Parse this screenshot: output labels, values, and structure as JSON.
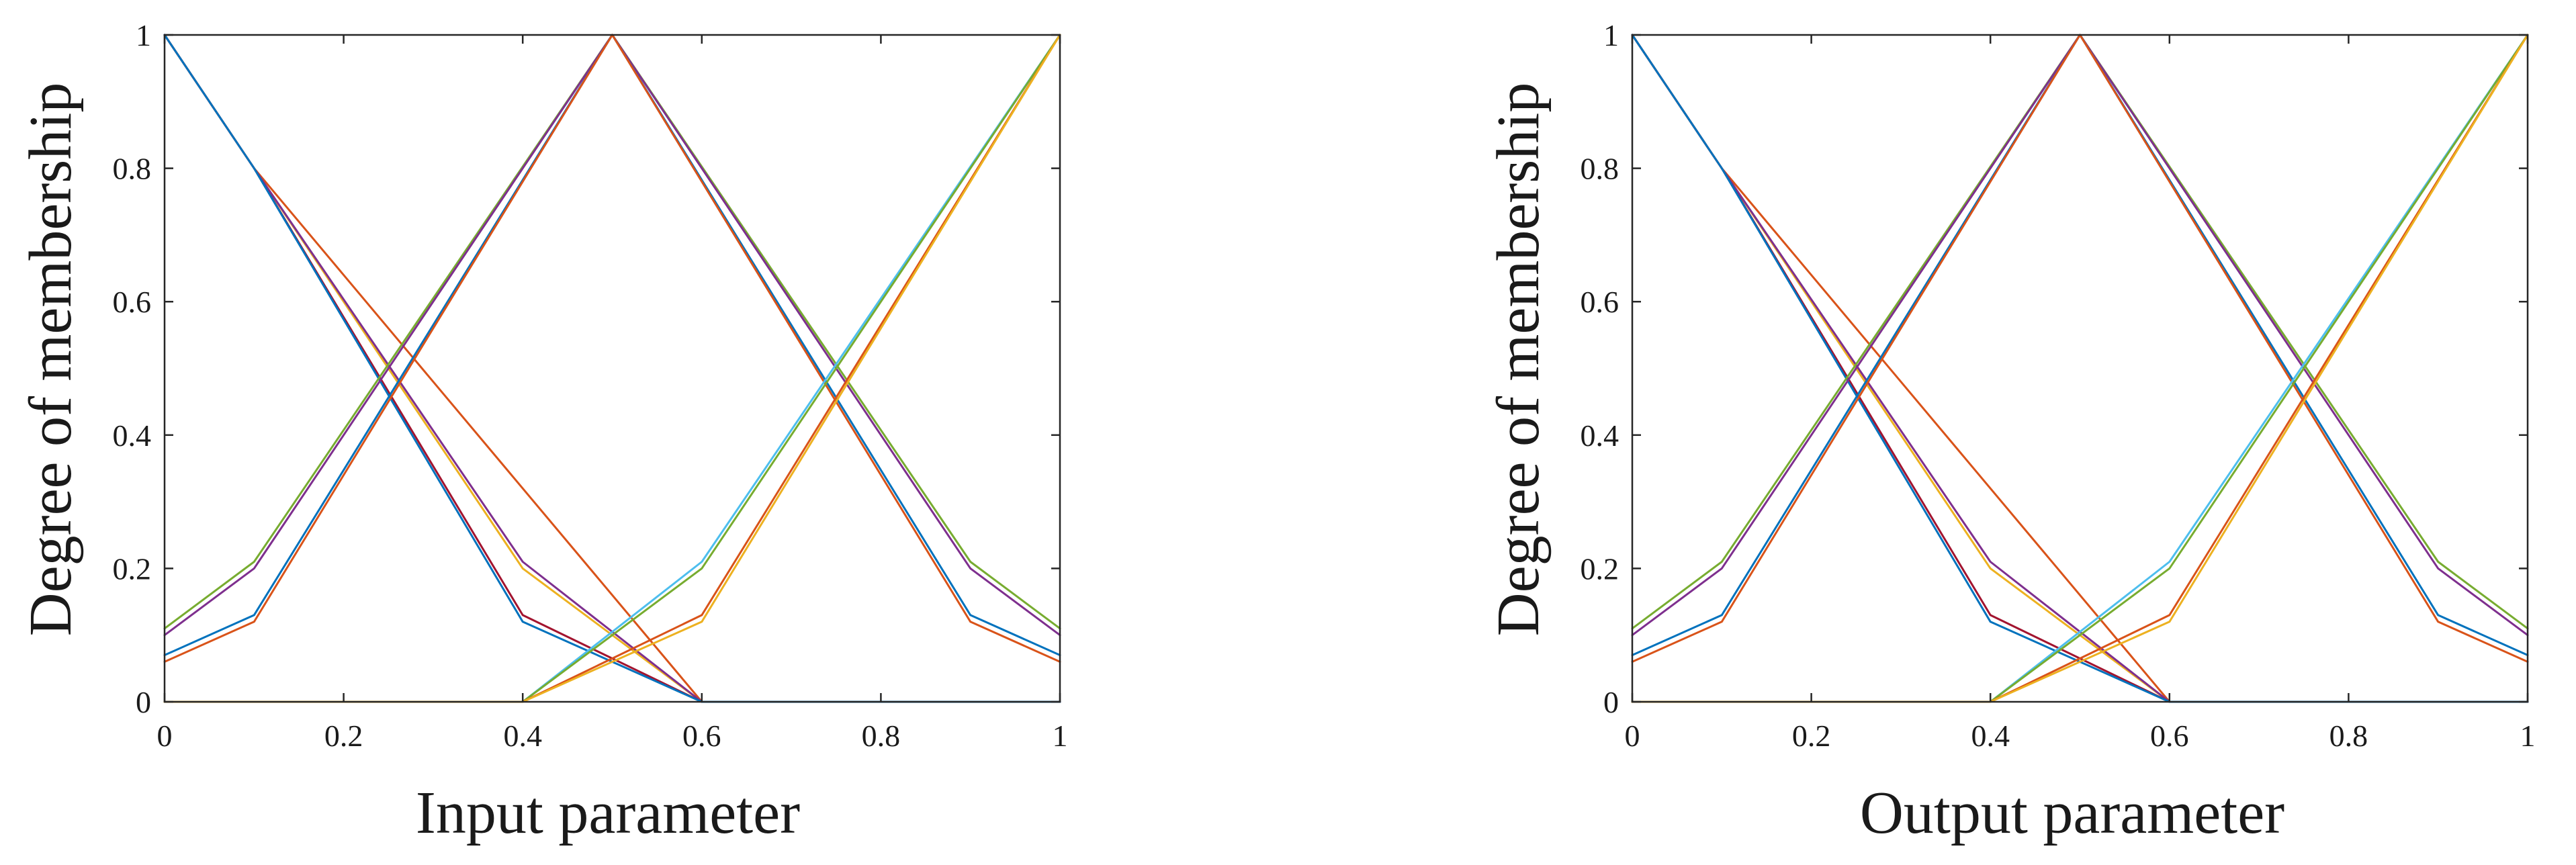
{
  "chart_data": [
    {
      "type": "line",
      "title": "",
      "xlabel": "Input parameter",
      "ylabel": "Degree of membership",
      "xlim": [
        0,
        1
      ],
      "ylim": [
        0,
        1
      ],
      "xticks": [
        "0",
        "0.2",
        "0.4",
        "0.6",
        "0.8",
        "1"
      ],
      "yticks": [
        "0",
        "0.2",
        "0.4",
        "0.6",
        "0.8",
        "1"
      ],
      "grid": false,
      "legend": "none",
      "series": [
        {
          "color": "#D95319",
          "x": [
            0,
            0.1,
            0.6,
            1
          ],
          "y": [
            1,
            0.8,
            0,
            0
          ]
        },
        {
          "color": "#EDB120",
          "x": [
            0,
            0.1,
            0.4,
            0.6,
            1
          ],
          "y": [
            1,
            0.8,
            0.2,
            0,
            0
          ]
        },
        {
          "color": "#7E2F8E",
          "x": [
            0,
            0.1,
            0.4,
            0.6,
            1
          ],
          "y": [
            1,
            0.8,
            0.21,
            0,
            0
          ]
        },
        {
          "color": "#A2142F",
          "x": [
            0,
            0.1,
            0.4,
            0.6,
            1
          ],
          "y": [
            1,
            0.8,
            0.13,
            0,
            0
          ]
        },
        {
          "color": "#0072BD",
          "x": [
            0,
            0.1,
            0.4,
            0.6,
            1
          ],
          "y": [
            1,
            0.8,
            0.12,
            0,
            0
          ]
        },
        {
          "color": "#77AC30",
          "x": [
            0,
            0.1,
            0.5,
            0.9,
            1
          ],
          "y": [
            0.11,
            0.21,
            1,
            0.21,
            0.11
          ]
        },
        {
          "color": "#7E2F8E",
          "x": [
            0,
            0.1,
            0.5,
            0.9,
            1
          ],
          "y": [
            0.1,
            0.2,
            1,
            0.2,
            0.1
          ]
        },
        {
          "color": "#0072BD",
          "x": [
            0,
            0.1,
            0.5,
            0.9,
            1
          ],
          "y": [
            0.07,
            0.13,
            1,
            0.13,
            0.07
          ]
        },
        {
          "color": "#D95319",
          "x": [
            0,
            0.1,
            0.5,
            0.9,
            1
          ],
          "y": [
            0.06,
            0.12,
            1,
            0.12,
            0.06
          ]
        },
        {
          "color": "#4DBEEE",
          "x": [
            0,
            0.4,
            0.6,
            1
          ],
          "y": [
            0,
            0,
            0.21,
            1
          ]
        },
        {
          "color": "#77AC30",
          "x": [
            0,
            0.4,
            0.6,
            1
          ],
          "y": [
            0,
            0,
            0.2,
            1
          ]
        },
        {
          "color": "#D95319",
          "x": [
            0,
            0.4,
            0.6,
            1
          ],
          "y": [
            0,
            0,
            0.13,
            1
          ]
        },
        {
          "color": "#EDB120",
          "x": [
            0,
            0.4,
            0.6,
            1
          ],
          "y": [
            0,
            0,
            0.12,
            1
          ]
        }
      ]
    },
    {
      "type": "line",
      "title": "",
      "xlabel": "Output parameter",
      "ylabel": "Degree of membership",
      "xlim": [
        0,
        1
      ],
      "ylim": [
        0,
        1
      ],
      "xticks": [
        "0",
        "0.2",
        "0.4",
        "0.6",
        "0.8",
        "1"
      ],
      "yticks": [
        "0",
        "0.2",
        "0.4",
        "0.6",
        "0.8",
        "1"
      ],
      "grid": false,
      "legend": "none",
      "series": [
        {
          "color": "#D95319",
          "x": [
            0,
            0.1,
            0.6,
            1
          ],
          "y": [
            1,
            0.8,
            0,
            0
          ]
        },
        {
          "color": "#EDB120",
          "x": [
            0,
            0.1,
            0.4,
            0.6,
            1
          ],
          "y": [
            1,
            0.8,
            0.2,
            0,
            0
          ]
        },
        {
          "color": "#7E2F8E",
          "x": [
            0,
            0.1,
            0.4,
            0.6,
            1
          ],
          "y": [
            1,
            0.8,
            0.21,
            0,
            0
          ]
        },
        {
          "color": "#A2142F",
          "x": [
            0,
            0.1,
            0.4,
            0.6,
            1
          ],
          "y": [
            1,
            0.8,
            0.13,
            0,
            0
          ]
        },
        {
          "color": "#0072BD",
          "x": [
            0,
            0.1,
            0.4,
            0.6,
            1
          ],
          "y": [
            1,
            0.8,
            0.12,
            0,
            0
          ]
        },
        {
          "color": "#77AC30",
          "x": [
            0,
            0.1,
            0.5,
            0.9,
            1
          ],
          "y": [
            0.11,
            0.21,
            1,
            0.21,
            0.11
          ]
        },
        {
          "color": "#7E2F8E",
          "x": [
            0,
            0.1,
            0.5,
            0.9,
            1
          ],
          "y": [
            0.1,
            0.2,
            1,
            0.2,
            0.1
          ]
        },
        {
          "color": "#0072BD",
          "x": [
            0,
            0.1,
            0.5,
            0.9,
            1
          ],
          "y": [
            0.07,
            0.13,
            1,
            0.13,
            0.07
          ]
        },
        {
          "color": "#D95319",
          "x": [
            0,
            0.1,
            0.5,
            0.9,
            1
          ],
          "y": [
            0.06,
            0.12,
            1,
            0.12,
            0.06
          ]
        },
        {
          "color": "#4DBEEE",
          "x": [
            0,
            0.4,
            0.6,
            1
          ],
          "y": [
            0,
            0,
            0.21,
            1
          ]
        },
        {
          "color": "#77AC30",
          "x": [
            0,
            0.4,
            0.6,
            1
          ],
          "y": [
            0,
            0,
            0.2,
            1
          ]
        },
        {
          "color": "#D95319",
          "x": [
            0,
            0.4,
            0.6,
            1
          ],
          "y": [
            0,
            0,
            0.13,
            1
          ]
        },
        {
          "color": "#EDB120",
          "x": [
            0,
            0.4,
            0.6,
            1
          ],
          "y": [
            0,
            0,
            0.12,
            1
          ]
        }
      ]
    }
  ]
}
